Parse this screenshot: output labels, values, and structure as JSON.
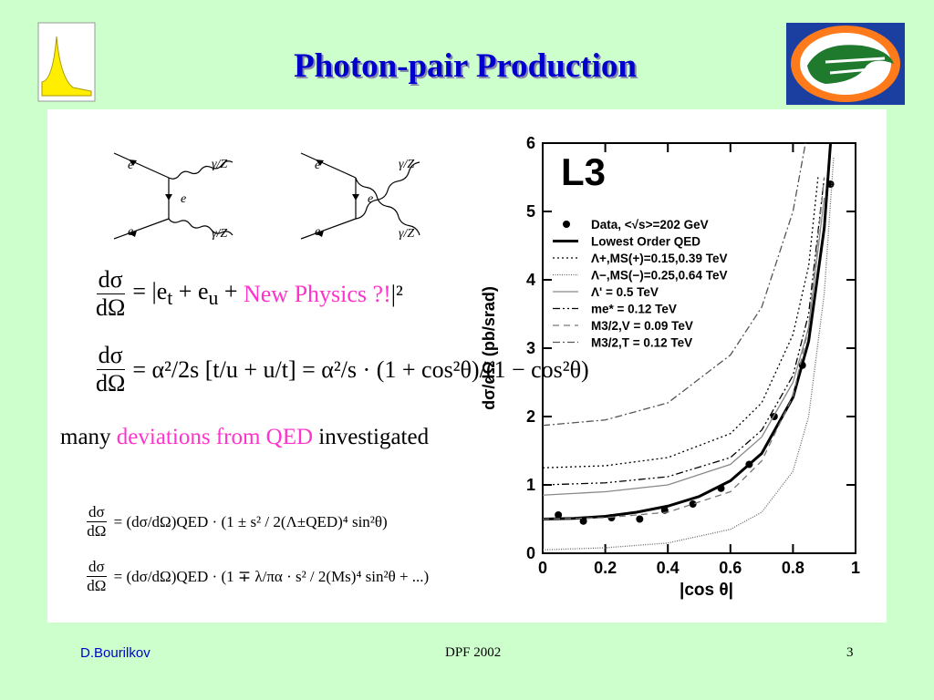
{
  "header": {
    "title": "Photon-pair Production"
  },
  "diagrams": [
    {
      "labels": [
        "e",
        "e",
        "e",
        "γ/Z",
        "γ/Z"
      ]
    },
    {
      "labels": [
        "e",
        "e",
        "e",
        "γ/Z",
        "γ/Z"
      ]
    }
  ],
  "equations": [
    {
      "num": "dσ",
      "den": "dΩ",
      "rhs": "= |e<sub>t</sub> + e<sub>u</sub> + ",
      "highlight": "New Physics ?!",
      "end": "|²"
    },
    {
      "num": "dσ",
      "den": "dΩ",
      "rhs": "= α²/2s [t/u + u/t] = α²/s · (1 + cos²θ)/(1 − cos²θ)"
    },
    {
      "num": "dσ",
      "den": "dΩ",
      "rhs": "= (dσ/dΩ)QED · (1 ± s² / 2(Λ±QED)⁴ sin²θ)"
    },
    {
      "num": "dσ",
      "den": "dΩ",
      "rhs": "= (dσ/dΩ)QED · (1 ∓ λ/πα · s² / 2(Ms)⁴ sin²θ + ...)"
    }
  ],
  "remark": [
    "many",
    "deviations from QED",
    "investigated"
  ],
  "chart_data": {
    "type": "line",
    "annotation": "L3",
    "xlabel": "|cos θ|",
    "ylabel": "dσ/dΩ (pb/srad)",
    "xlim": [
      0,
      1
    ],
    "ylim": [
      0,
      6
    ],
    "xticks": [
      0,
      0.2,
      0.4,
      0.6,
      0.8,
      1
    ],
    "yticks": [
      0,
      1,
      2,
      3,
      4,
      5,
      6
    ],
    "legend": "upper right",
    "series": [
      {
        "name": "Data, <√s>=202 GeV",
        "color": "#000000",
        "style": "markers",
        "x": [
          0.05,
          0.13,
          0.22,
          0.31,
          0.39,
          0.48,
          0.57,
          0.66,
          0.74,
          0.83,
          0.92
        ],
        "values": [
          0.56,
          0.47,
          0.52,
          0.5,
          0.63,
          0.72,
          0.95,
          1.3,
          2.0,
          2.75,
          5.4
        ]
      },
      {
        "name": "Lowest Order QED",
        "color": "#000000",
        "style": "bold",
        "x": [
          0,
          0.1,
          0.2,
          0.3,
          0.4,
          0.5,
          0.6,
          0.7,
          0.8,
          0.85,
          0.9,
          0.92
        ],
        "values": [
          0.5,
          0.51,
          0.54,
          0.6,
          0.69,
          0.83,
          1.06,
          1.46,
          2.28,
          3.1,
          4.76,
          6.0
        ]
      },
      {
        "name": "Λ+,MS(+)=0.15,0.39 TeV",
        "color": "#000000",
        "style": "dotted",
        "x": [
          0,
          0.2,
          0.4,
          0.6,
          0.7,
          0.8,
          0.85,
          0.88
        ],
        "values": [
          1.25,
          1.28,
          1.4,
          1.75,
          2.2,
          3.2,
          4.2,
          5.5
        ]
      },
      {
        "name": "Λ−,MS(−)=0.25,0.64 TeV",
        "color": "#666666",
        "style": "dense",
        "x": [
          0,
          0.2,
          0.4,
          0.6,
          0.7,
          0.8,
          0.85,
          0.9,
          0.93
        ],
        "values": [
          0.05,
          0.08,
          0.15,
          0.35,
          0.6,
          1.2,
          2.0,
          3.8,
          5.8
        ]
      },
      {
        "name": "Λ' = 0.5 TeV",
        "color": "#888888",
        "style": "solid",
        "x": [
          0,
          0.2,
          0.4,
          0.6,
          0.7,
          0.8,
          0.85,
          0.9
        ],
        "values": [
          0.85,
          0.9,
          1.0,
          1.3,
          1.7,
          2.5,
          3.3,
          5.2
        ]
      },
      {
        "name": "me* = 0.12 TeV",
        "color": "#000000",
        "style": "dashdotdot",
        "x": [
          0,
          0.2,
          0.4,
          0.6,
          0.7,
          0.8,
          0.85,
          0.9
        ],
        "values": [
          1.0,
          1.03,
          1.12,
          1.4,
          1.8,
          2.6,
          3.5,
          5.5
        ]
      },
      {
        "name": "M3/2,V = 0.09 TeV",
        "color": "#777777",
        "style": "dashed",
        "x": [
          0,
          0.2,
          0.4,
          0.6,
          0.7,
          0.8,
          0.85,
          0.9
        ],
        "values": [
          0.5,
          0.52,
          0.6,
          0.9,
          1.35,
          2.3,
          3.3,
          5.5
        ]
      },
      {
        "name": "M3/2,T = 0.12 TeV",
        "color": "#555555",
        "style": "dashdot",
        "x": [
          0,
          0.2,
          0.4,
          0.6,
          0.7,
          0.8,
          0.84
        ],
        "values": [
          1.87,
          1.95,
          2.2,
          2.9,
          3.6,
          5.0,
          6.0
        ]
      }
    ]
  },
  "footer": {
    "author": "D.Bourilkov",
    "event": "DPF 2002",
    "page": "3"
  }
}
